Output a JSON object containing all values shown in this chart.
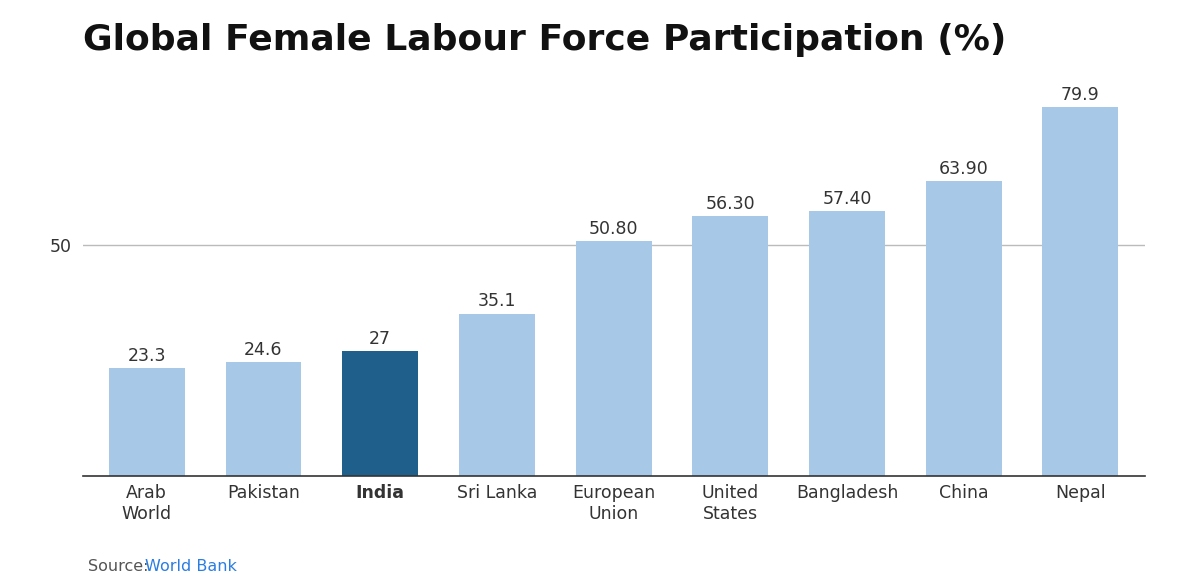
{
  "title": "Global Female Labour Force Participation (%)",
  "categories": [
    "Arab\nWorld",
    "Pakistan",
    "India",
    "Sri Lanka",
    "European\nUnion",
    "United\nStates",
    "Bangladesh",
    "China",
    "Nepal"
  ],
  "values": [
    23.3,
    24.6,
    27,
    35.1,
    50.8,
    56.3,
    57.4,
    63.9,
    79.9
  ],
  "bar_colors": [
    "#a8c8e8",
    "#a8c8e8",
    "#1f5f8b",
    "#a8c8e8",
    "#a8c8e8",
    "#a8c8e8",
    "#a8c8e8",
    "#a8c8e8",
    "#a8c8e8"
  ],
  "value_labels": [
    "23.3",
    "24.6",
    "27",
    "35.1",
    "50.80",
    "56.30",
    "57.40",
    "63.90",
    "79.9"
  ],
  "ytick_value": 50,
  "ylim": [
    0,
    88
  ],
  "source_text": "Source: ",
  "source_link": "World Bank",
  "source_link_color": "#2a7de1",
  "source_text_color": "#555555",
  "background_color": "#ffffff",
  "grid_color": "#bbbbbb",
  "title_fontsize": 26,
  "tick_fontsize": 12.5,
  "source_fontsize": 11.5,
  "bar_label_fontsize": 12.5,
  "bar_width": 0.65
}
